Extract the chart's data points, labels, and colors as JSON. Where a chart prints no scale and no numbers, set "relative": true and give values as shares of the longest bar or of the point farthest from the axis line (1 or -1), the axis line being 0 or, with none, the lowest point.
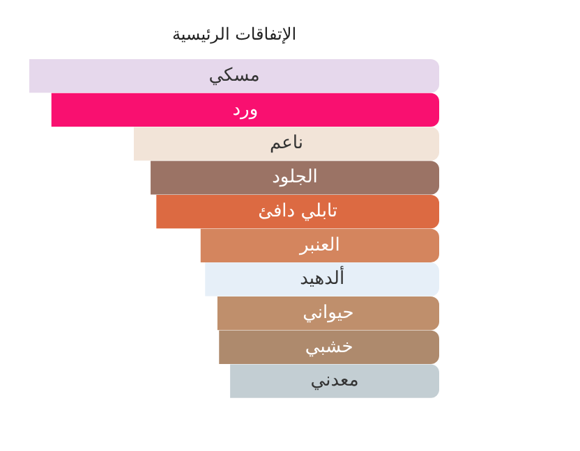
{
  "chart_data": {
    "type": "bar",
    "orientation": "horizontal",
    "relative": true,
    "title": "الإتفاقات الرئيسية",
    "categories": [
      "مسكي",
      "ورد",
      "ناعم",
      "الجلود",
      "تابلي دافئ",
      "العنبر",
      "ألدهيد",
      "حيواني",
      "خشبي",
      "معدني"
    ],
    "values": [
      1,
      0.946,
      0.745,
      0.704,
      0.69,
      0.582,
      0.571,
      0.541,
      0.537,
      0.51
    ],
    "colors": [
      "#e6d8ec",
      "#f91070",
      "#f2e4d8",
      "#9b7365",
      "#dc6a42",
      "#d4855e",
      "#e6eff8",
      "#bf8f6c",
      "#ae8a6d",
      "#c3ced3"
    ],
    "legend": false
  }
}
